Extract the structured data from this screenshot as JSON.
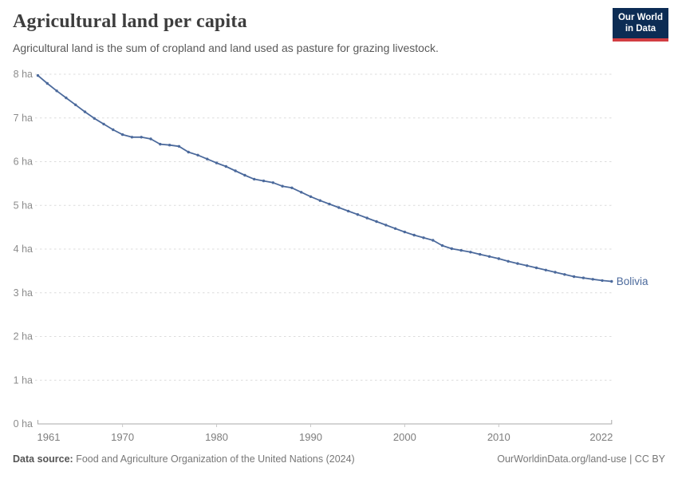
{
  "header": {
    "title": "Agricultural land per capita",
    "subtitle": "Agricultural land is the sum of cropland and land used as pasture for grazing livestock."
  },
  "logo": {
    "line1": "Our World",
    "line2": "in Data",
    "bg_color": "#0c2c54",
    "accent_color": "#d23d42"
  },
  "chart_data": {
    "type": "line",
    "title": "Agricultural land per capita",
    "unit": "ha",
    "xlim": [
      1961,
      2022
    ],
    "ylim": [
      0,
      8
    ],
    "x_ticks": [
      1961,
      1970,
      1980,
      1990,
      2000,
      2010,
      2022
    ],
    "y_ticks": [
      0,
      1,
      2,
      3,
      4,
      5,
      6,
      7,
      8
    ],
    "y_tick_suffix": " ha",
    "grid": "horizontal-dashed",
    "legend_position": "end-of-line",
    "series": [
      {
        "name": "Bolivia",
        "color": "#4C6A9C",
        "x": [
          1961,
          1962,
          1963,
          1964,
          1965,
          1966,
          1967,
          1968,
          1969,
          1970,
          1971,
          1972,
          1973,
          1974,
          1975,
          1976,
          1977,
          1978,
          1979,
          1980,
          1981,
          1982,
          1983,
          1984,
          1985,
          1986,
          1987,
          1988,
          1989,
          1990,
          1991,
          1992,
          1993,
          1994,
          1995,
          1996,
          1997,
          1998,
          1999,
          2000,
          2001,
          2002,
          2003,
          2004,
          2005,
          2006,
          2007,
          2008,
          2009,
          2010,
          2011,
          2012,
          2013,
          2014,
          2015,
          2016,
          2017,
          2018,
          2019,
          2020,
          2021,
          2022
        ],
        "values": [
          7.97,
          7.79,
          7.62,
          7.46,
          7.3,
          7.14,
          6.99,
          6.86,
          6.73,
          6.62,
          6.56,
          6.56,
          6.52,
          6.4,
          6.38,
          6.35,
          6.22,
          6.15,
          6.06,
          5.97,
          5.89,
          5.79,
          5.69,
          5.6,
          5.56,
          5.52,
          5.44,
          5.4,
          5.3,
          5.2,
          5.11,
          5.03,
          4.95,
          4.87,
          4.79,
          4.71,
          4.63,
          4.55,
          4.47,
          4.39,
          4.32,
          4.26,
          4.2,
          4.08,
          4.01,
          3.97,
          3.93,
          3.88,
          3.83,
          3.78,
          3.72,
          3.67,
          3.62,
          3.57,
          3.52,
          3.47,
          3.42,
          3.37,
          3.34,
          3.31,
          3.28,
          3.26
        ]
      }
    ]
  },
  "footer": {
    "source_label": "Data source:",
    "source_text": " Food and Agriculture Organization of the United Nations (2024)",
    "link_text": "OurWorldinData.org/land-use | CC BY"
  }
}
